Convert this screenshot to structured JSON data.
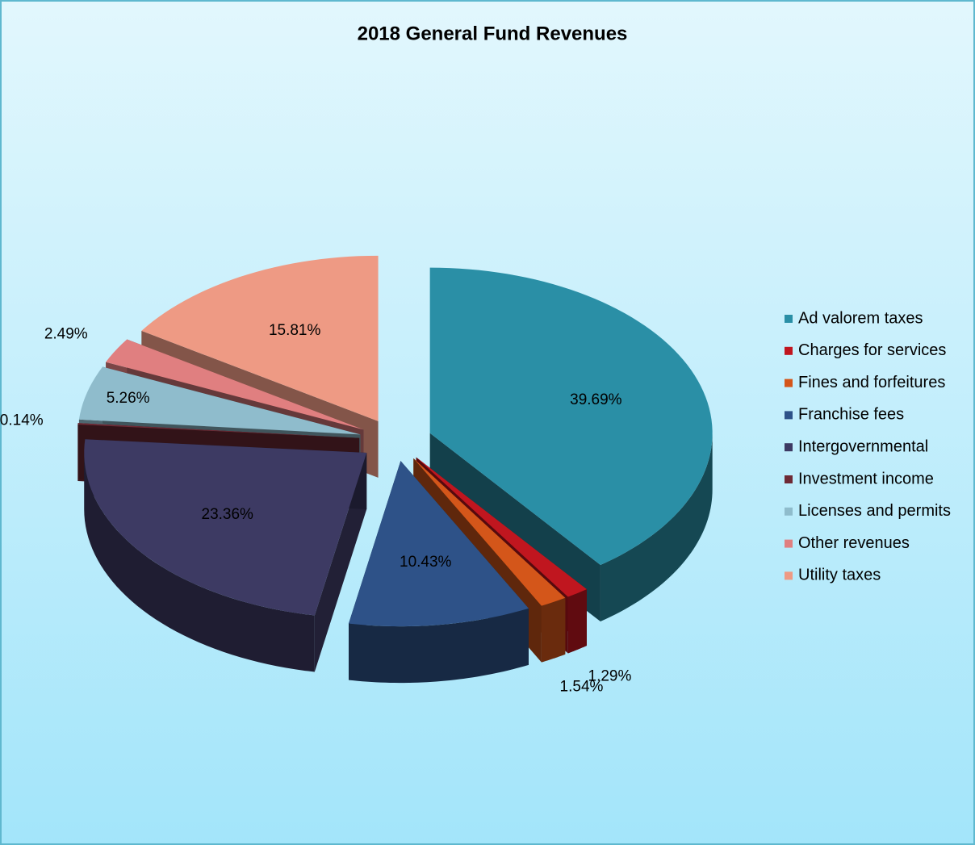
{
  "chart_data": {
    "type": "pie",
    "title": "2018 General Fund Revenues",
    "categories": [
      "Ad valorem taxes",
      "Charges for services",
      "Fines and forfeitures",
      "Franchise fees",
      "Intergovernmental",
      "Investment income",
      "Licenses and permits",
      "Other revenues",
      "Utility taxes"
    ],
    "values": [
      39.69,
      1.29,
      1.54,
      10.43,
      23.36,
      0.14,
      5.26,
      2.49,
      15.81
    ],
    "value_labels": [
      "39.69%",
      "1.29%",
      "1.54%",
      "10.43%",
      "23.36%",
      "0.14%",
      "5.26%",
      "2.49%",
      "15.81%"
    ],
    "colors": [
      "#2a8fa6",
      "#c0161f",
      "#d4561a",
      "#2e5288",
      "#3d3a63",
      "#6e2a35",
      "#8fbccc",
      "#e07f80",
      "#ee9a84"
    ],
    "legend": "right"
  }
}
